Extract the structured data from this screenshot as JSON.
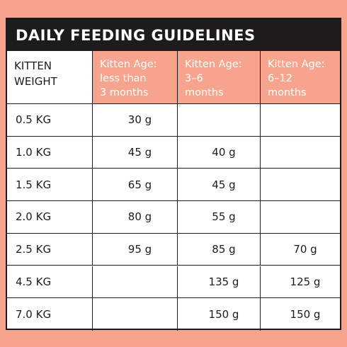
{
  "header": {
    "title": "DAILY FEEDING GUIDELINES"
  },
  "table": {
    "columns": [
      [
        "KITTEN",
        "WEIGHT"
      ],
      [
        "Kitten Age:",
        "less than",
        "3 months"
      ],
      [
        "Kitten Age:",
        "3–6",
        "months"
      ],
      [
        "Kitten Age:",
        "6–12",
        "months"
      ]
    ],
    "rows": [
      [
        "0.5 KG",
        "30 g",
        null,
        null
      ],
      [
        "1.0 KG",
        "45 g",
        "40 g",
        null
      ],
      [
        "1.5 KG",
        "65 g",
        "45 g",
        null
      ],
      [
        "2.0 KG",
        "80 g",
        "55 g",
        null
      ],
      [
        "2.5 KG",
        "95 g",
        "85 g",
        "70 g"
      ],
      [
        "4.5 KG",
        null,
        "135 g",
        "125 g"
      ],
      [
        "7.0 KG",
        null,
        "150 g",
        "150 g"
      ]
    ]
  }
}
